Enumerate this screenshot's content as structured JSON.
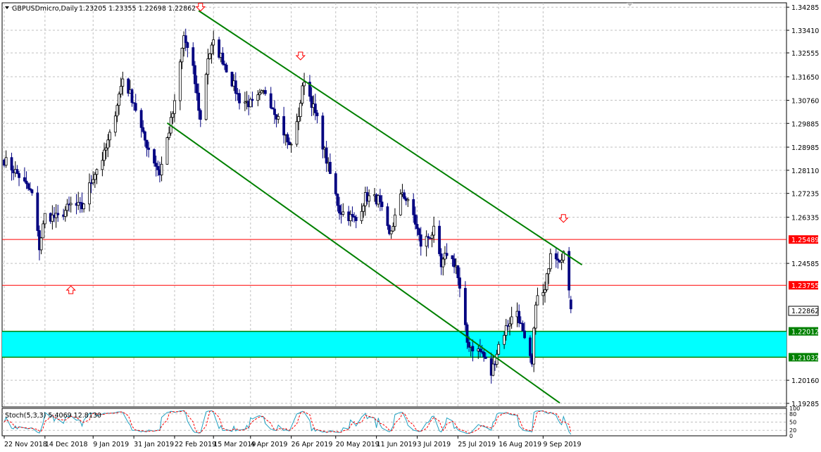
{
  "window": {
    "symbol_label": "GBPUSDmicro,Daily",
    "ohlc_label": "1.23205 1.23355 1.22698 1.22862"
  },
  "colors": {
    "bull_candle": "#000000",
    "bear_candle": "#000080",
    "grid": "#c0c0c0",
    "channel_line": "#008000",
    "resistance_line": "#ff0000",
    "support_band": "#00ffff",
    "arrow": "#ff0000",
    "stoch_main": "#20a0c0",
    "stoch_signal": "#ff0000"
  },
  "price_axis": {
    "ticks": [
      "1.34285",
      "1.33410",
      "1.32555",
      "1.31650",
      "1.30760",
      "1.29885",
      "1.28985",
      "1.28110",
      "1.27235",
      "1.26335",
      "1.24585",
      "1.20160",
      "1.19285"
    ],
    "last_price_label": "1.22862"
  },
  "levels": [
    {
      "label": "1.25489",
      "kind": "resistance"
    },
    {
      "label": "1.23755",
      "kind": "resistance"
    },
    {
      "label": "1.22012",
      "kind": "support"
    },
    {
      "label": "1.21032",
      "kind": "support"
    }
  ],
  "date_axis": {
    "ticks": [
      "22 Nov 2018",
      "14 Dec 2018",
      "9 Jan 2019",
      "31 Jan 2019",
      "22 Feb 2019",
      "15 Mar 2019",
      "4 Apr 2019",
      "26 Apr 2019",
      "20 May 2019",
      "11 Jun 2019",
      "3 Jul 2019",
      "25 Jul 2019",
      "16 Aug 2019",
      "9 Sep 2019"
    ]
  },
  "stochastic": {
    "label": "Stoch(5,3,3) 5.4069 12.8130",
    "levels": [
      "100",
      "80",
      "50",
      "20",
      "0"
    ]
  },
  "chart_data": {
    "type": "candlestick",
    "symbol": "GBPUSDmicro",
    "timeframe": "Daily",
    "date_range": [
      "2018-11-22",
      "2019-09-24"
    ],
    "ylim": [
      1.1915,
      1.3445
    ],
    "last": {
      "open": 1.23205,
      "high": 1.23355,
      "low": 1.22698,
      "close": 1.22862
    },
    "close_path": [
      [
        "2018-11-22",
        1.285
      ],
      [
        "2018-11-30",
        1.279
      ],
      [
        "2018-12-07",
        1.272
      ],
      [
        "2018-12-11",
        1.252
      ],
      [
        "2018-12-14",
        1.264
      ],
      [
        "2018-12-21",
        1.263
      ],
      [
        "2018-12-28",
        1.268
      ],
      [
        "2019-01-03",
        1.267
      ],
      [
        "2019-01-09",
        1.279
      ],
      [
        "2019-01-15",
        1.287
      ],
      [
        "2019-01-18",
        1.294
      ],
      [
        "2019-01-25",
        1.316
      ],
      [
        "2019-01-31",
        1.307
      ],
      [
        "2019-02-05",
        1.294
      ],
      [
        "2019-02-14",
        1.28
      ],
      [
        "2019-02-22",
        1.306
      ],
      [
        "2019-02-27",
        1.332
      ],
      [
        "2019-03-04",
        1.319
      ],
      [
        "2019-03-08",
        1.3
      ],
      [
        "2019-03-12",
        1.324
      ],
      [
        "2019-03-15",
        1.329
      ],
      [
        "2019-03-20",
        1.323
      ],
      [
        "2019-03-29",
        1.308
      ],
      [
        "2019-04-05",
        1.306
      ],
      [
        "2019-04-12",
        1.311
      ],
      [
        "2019-04-19",
        1.301
      ],
      [
        "2019-04-25",
        1.29
      ],
      [
        "2019-04-29",
        1.298
      ],
      [
        "2019-05-03",
        1.316
      ],
      [
        "2019-05-10",
        1.3
      ],
      [
        "2019-05-15",
        1.285
      ],
      [
        "2019-05-22",
        1.266
      ],
      [
        "2019-05-31",
        1.262
      ],
      [
        "2019-06-05",
        1.271
      ],
      [
        "2019-06-12",
        1.27
      ],
      [
        "2019-06-18",
        1.256
      ],
      [
        "2019-06-25",
        1.273
      ],
      [
        "2019-07-01",
        1.264
      ],
      [
        "2019-07-05",
        1.253
      ],
      [
        "2019-07-12",
        1.258
      ],
      [
        "2019-07-16",
        1.244
      ],
      [
        "2019-07-19",
        1.25
      ],
      [
        "2019-07-24",
        1.245
      ],
      [
        "2019-07-30",
        1.216
      ],
      [
        "2019-08-02",
        1.214
      ],
      [
        "2019-08-07",
        1.212
      ],
      [
        "2019-08-12",
        1.204
      ],
      [
        "2019-08-16",
        1.215
      ],
      [
        "2019-08-21",
        1.223
      ],
      [
        "2019-08-26",
        1.228
      ],
      [
        "2019-08-30",
        1.216
      ],
      [
        "2019-09-03",
        1.207
      ],
      [
        "2019-09-05",
        1.232
      ],
      [
        "2019-09-10",
        1.235
      ],
      [
        "2019-09-13",
        1.251
      ],
      [
        "2019-09-18",
        1.248
      ],
      [
        "2019-09-20",
        1.25
      ],
      [
        "2019-09-24",
        1.2286
      ]
    ],
    "channel": {
      "upper": [
        [
          "2019-03-07",
          1.3415
        ],
        [
          "2019-09-30",
          1.2453
        ]
      ],
      "lower": [
        [
          "2019-02-18",
          1.299
        ],
        [
          "2019-09-18",
          1.193
        ]
      ]
    },
    "horizontal_levels": [
      1.25489,
      1.23755,
      1.22012,
      1.21032
    ],
    "support_zone": [
      1.21032,
      1.22012
    ],
    "arrows_down": [
      [
        "2019-03-08",
        1.343
      ],
      [
        "2019-05-01",
        1.3245
      ],
      [
        "2019-09-20",
        1.263
      ]
    ],
    "arrows_up": [
      [
        "2018-12-28",
        1.2357
      ]
    ],
    "stochastic": {
      "k": 5.4069,
      "d": 12.813,
      "periods": [
        5,
        3,
        3
      ]
    }
  }
}
